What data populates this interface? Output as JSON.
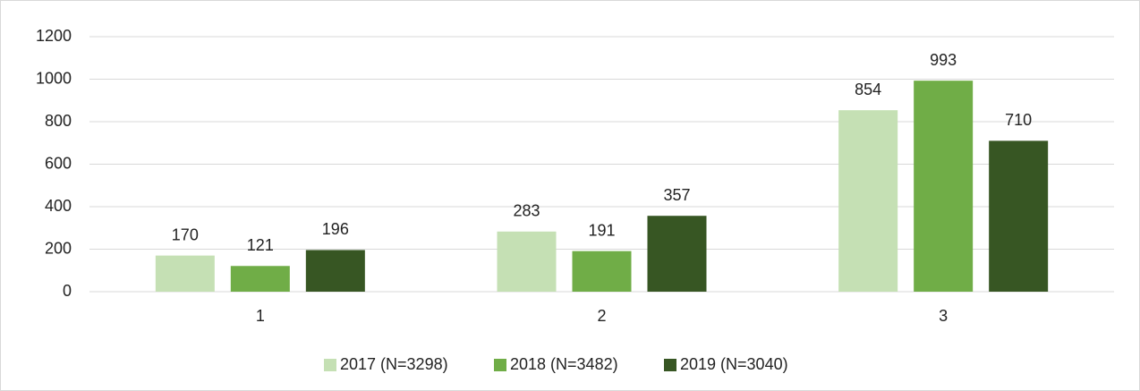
{
  "chart_data": {
    "type": "bar",
    "categories": [
      "1",
      "2",
      "3"
    ],
    "series": [
      {
        "name": "2017 (N=3298)",
        "color": "#c5e0b4",
        "values": [
          170,
          283,
          854
        ]
      },
      {
        "name": "2018 (N=3482)",
        "color": "#70ad47",
        "values": [
          121,
          191,
          993
        ]
      },
      {
        "name": "2019 (N=3040)",
        "color": "#375623",
        "values": [
          196,
          357,
          710
        ]
      }
    ],
    "ylim": [
      0,
      1200
    ],
    "yticks": [
      0,
      200,
      400,
      600,
      800,
      1000,
      1200
    ],
    "grid": true,
    "legend": "bottom"
  }
}
